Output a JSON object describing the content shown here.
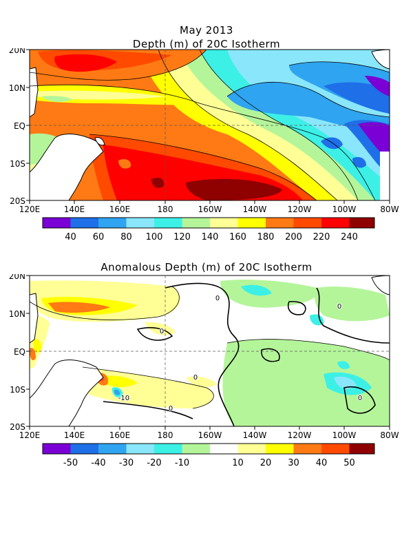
{
  "header": {
    "month_title": "May 2013"
  },
  "panel_top": {
    "title": "Depth (m) of 20C Isotherm",
    "lon_ticks": [
      "120E",
      "140E",
      "160E",
      "180",
      "160W",
      "140W",
      "120W",
      "100W",
      "80W"
    ],
    "lat_ticks": [
      "20N",
      "10N",
      "EQ",
      "10S",
      "20S"
    ],
    "colorbar_colors": [
      "#7a00d6",
      "#1e6fe8",
      "#2fa4f0",
      "#8ae6fa",
      "#3cf0e6",
      "#b4f59a",
      "#ffff96",
      "#ffff00",
      "#ff7a14",
      "#ff4a00",
      "#ff0000",
      "#8f0000"
    ],
    "colorbar_labels": [
      "40",
      "60",
      "80",
      "100",
      "120",
      "140",
      "160",
      "180",
      "200",
      "220",
      "240"
    ]
  },
  "panel_bottom": {
    "title": "Anomalous Depth (m) of 20C Isotherm",
    "lon_ticks": [
      "120E",
      "140E",
      "160E",
      "180",
      "160W",
      "140W",
      "120W",
      "100W",
      "80W"
    ],
    "lat_ticks": [
      "20N",
      "10N",
      "EQ",
      "10S",
      "20S"
    ],
    "colorbar_colors": [
      "#7a00d6",
      "#1e6fe8",
      "#2fa4f0",
      "#8ae6fa",
      "#3cf0e6",
      "#b4f59a",
      "#ffffff",
      "#ffff96",
      "#ffff00",
      "#ff7a14",
      "#ff4a00",
      "#8f0000"
    ],
    "colorbar_labels": [
      "-50",
      "-40",
      "-30",
      "-20",
      "-10",
      "10",
      "20",
      "30",
      "40",
      "50"
    ],
    "contour_labels": [
      "0",
      "0",
      "0",
      "0",
      "0",
      "0",
      "-10"
    ]
  }
}
